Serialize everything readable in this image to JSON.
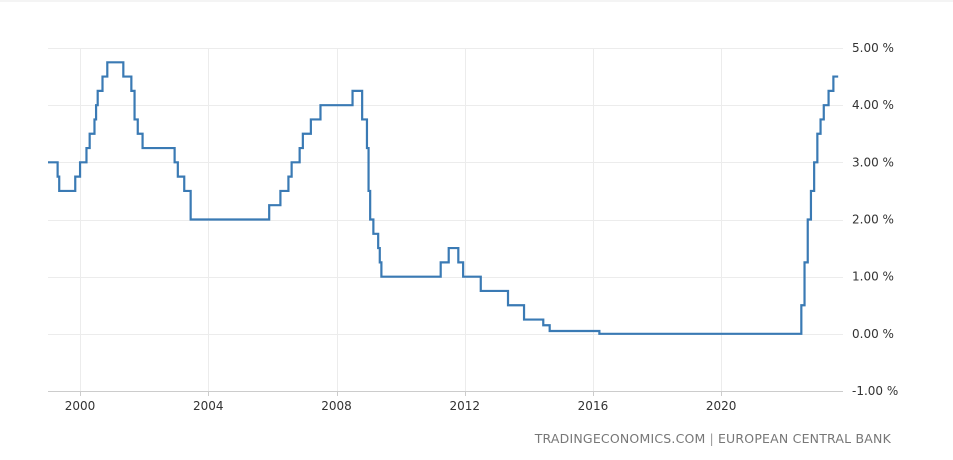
{
  "chart_data": {
    "type": "line",
    "title": "",
    "xlabel": "",
    "ylabel": "",
    "x_tick_labels": [
      "2000",
      "2004",
      "2008",
      "2012",
      "2016",
      "2020"
    ],
    "x_tick_values": [
      2000,
      2004,
      2008,
      2012,
      2016,
      2020
    ],
    "y_tick_labels": [
      "5.00 %",
      "4.00 %",
      "3.00 %",
      "2.00 %",
      "1.00 %",
      "0.00 %",
      "-1.00 %"
    ],
    "y_tick_values": [
      5,
      4,
      3,
      2,
      1,
      0,
      -1
    ],
    "xlim": [
      1999.0,
      2023.8
    ],
    "ylim": [
      -1,
      5
    ],
    "grid": true,
    "line_color": "#3a7ab4",
    "series": [
      {
        "step": true,
        "x": [
          1999.0,
          1999.3,
          1999.35,
          1999.85,
          2000.0,
          2000.1,
          2000.2,
          2000.3,
          2000.45,
          2000.5,
          2000.55,
          2000.7,
          2000.75,
          2000.85,
          2001.35,
          2001.6,
          2001.7,
          2001.8,
          2001.95,
          2002.95,
          2003.05,
          2003.25,
          2003.45,
          2005.9,
          2006.15,
          2006.25,
          2006.4,
          2006.5,
          2006.6,
          2006.75,
          2006.85,
          2006.95,
          2007.1,
          2007.2,
          2007.4,
          2007.5,
          2008.5,
          2008.6,
          2008.8,
          2008.95,
          2009.0,
          2009.05,
          2009.15,
          2009.3,
          2009.35,
          2009.4,
          2011.25,
          2011.5,
          2011.8,
          2011.95,
          2012.5,
          2013.35,
          2013.85,
          2014.45,
          2014.65,
          2016.2,
          2022.5,
          2022.6,
          2022.7,
          2022.8,
          2022.9,
          2023.0,
          2023.1,
          2023.2,
          2023.35,
          2023.5,
          2023.6,
          2023.65
        ],
        "values": [
          3.0,
          2.75,
          2.5,
          2.75,
          3.0,
          3.0,
          3.25,
          3.5,
          3.75,
          4.0,
          4.25,
          4.5,
          4.5,
          4.75,
          4.5,
          4.25,
          3.75,
          3.5,
          3.25,
          3.0,
          2.75,
          2.5,
          2.0,
          2.25,
          2.25,
          2.5,
          2.5,
          2.75,
          3.0,
          3.0,
          3.25,
          3.5,
          3.5,
          3.75,
          3.75,
          4.0,
          4.25,
          4.25,
          3.75,
          3.25,
          2.5,
          2.0,
          1.75,
          1.5,
          1.25,
          1.0,
          1.25,
          1.5,
          1.25,
          1.0,
          0.75,
          0.5,
          0.25,
          0.15,
          0.05,
          0.0,
          0.5,
          1.25,
          2.0,
          2.5,
          3.0,
          3.5,
          3.75,
          4.0,
          4.25,
          4.5,
          4.5,
          4.5
        ]
      }
    ]
  },
  "source": {
    "site": "TRADINGECONOMICS.COM",
    "separator": "|",
    "provider": "EUROPEAN CENTRAL BANK"
  }
}
